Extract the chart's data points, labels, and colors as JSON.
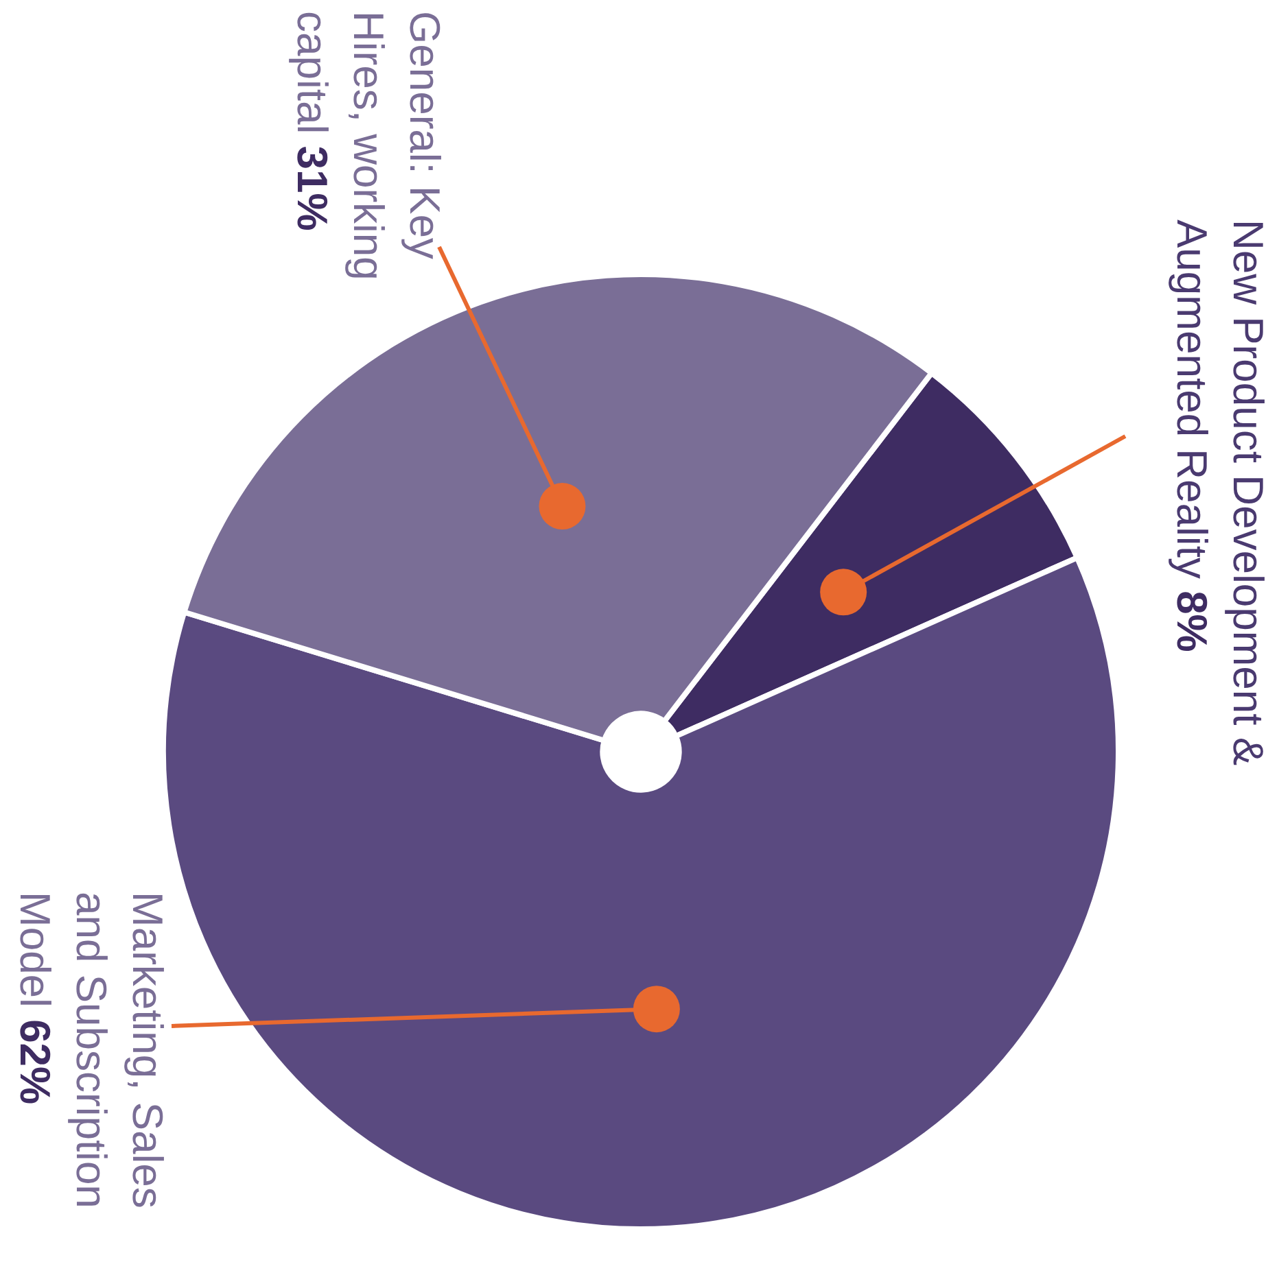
{
  "chart_data": {
    "type": "pie",
    "categories": [
      "New Product Development & Augmented Reality",
      "Marketing, Sales and Subscription Model",
      "General: Key Hires, working capital"
    ],
    "values": [
      8,
      62,
      31
    ],
    "value_labels": [
      "8%",
      "62%",
      "31%"
    ],
    "colors": [
      "#3e2c62",
      "#5a4a80",
      "#7a6e96"
    ],
    "legend": false
  }
}
